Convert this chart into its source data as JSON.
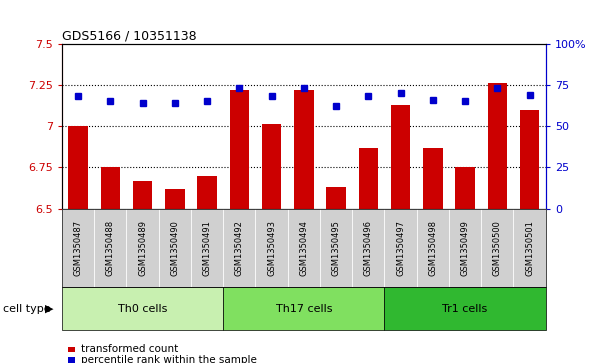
{
  "title": "GDS5166 / 10351138",
  "samples": [
    "GSM1350487",
    "GSM1350488",
    "GSM1350489",
    "GSM1350490",
    "GSM1350491",
    "GSM1350492",
    "GSM1350493",
    "GSM1350494",
    "GSM1350495",
    "GSM1350496",
    "GSM1350497",
    "GSM1350498",
    "GSM1350499",
    "GSM1350500",
    "GSM1350501"
  ],
  "transformed_count": [
    7.0,
    6.75,
    6.67,
    6.62,
    6.7,
    7.22,
    7.01,
    7.22,
    6.63,
    6.87,
    7.13,
    6.87,
    6.75,
    7.26,
    7.1
  ],
  "percentile_rank": [
    68,
    65,
    64,
    64,
    65,
    73,
    68,
    73,
    62,
    68,
    70,
    66,
    65,
    73,
    69
  ],
  "cell_groups": [
    {
      "label": "Th0 cells",
      "start": 0,
      "end": 5,
      "color": "#c8f0b0"
    },
    {
      "label": "Th17 cells",
      "start": 5,
      "end": 10,
      "color": "#80e060"
    },
    {
      "label": "Tr1 cells",
      "start": 10,
      "end": 15,
      "color": "#30b830"
    }
  ],
  "ylim": [
    6.5,
    7.5
  ],
  "yticks": [
    6.5,
    6.75,
    7.0,
    7.25,
    7.5
  ],
  "ytick_labels": [
    "6.5",
    "6.75",
    "7",
    "7.25",
    "7.5"
  ],
  "y2_ticks": [
    0,
    25,
    50,
    75,
    100
  ],
  "y2_tick_labels": [
    "0",
    "25",
    "50",
    "75",
    "100%"
  ],
  "bar_color": "#cc0000",
  "dot_color": "#0000cc",
  "xticklabel_bg": "#d0d0d0",
  "legend_items": [
    "transformed count",
    "percentile rank within the sample"
  ],
  "legend_colors": [
    "#cc0000",
    "#0000cc"
  ],
  "cell_type_label": "cell type",
  "cell_type_arrow": "▶"
}
